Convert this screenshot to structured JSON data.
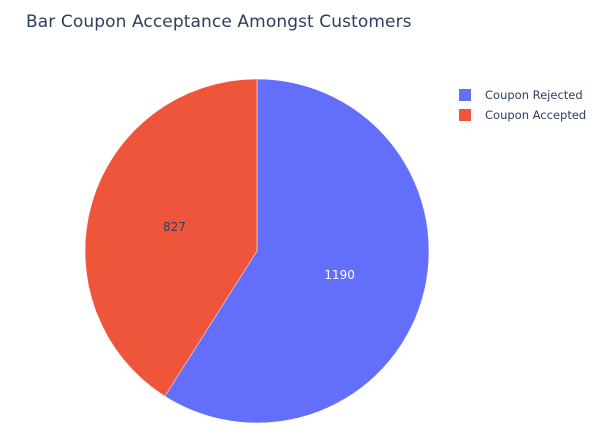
{
  "chart_data": {
    "type": "pie",
    "title": "Bar Coupon Acceptance Amongst Customers",
    "slices": [
      {
        "label": "Coupon Rejected",
        "value": 1190,
        "color": "#636efa"
      },
      {
        "label": "Coupon Accepted",
        "value": 827,
        "color": "#ef553b"
      }
    ],
    "start_angle_deg": 90,
    "direction": "clockwise",
    "legend_position": "top-right",
    "text_colors": {
      "Coupon Rejected": "#ffffff",
      "Coupon Accepted": "#2a3f5f"
    }
  }
}
